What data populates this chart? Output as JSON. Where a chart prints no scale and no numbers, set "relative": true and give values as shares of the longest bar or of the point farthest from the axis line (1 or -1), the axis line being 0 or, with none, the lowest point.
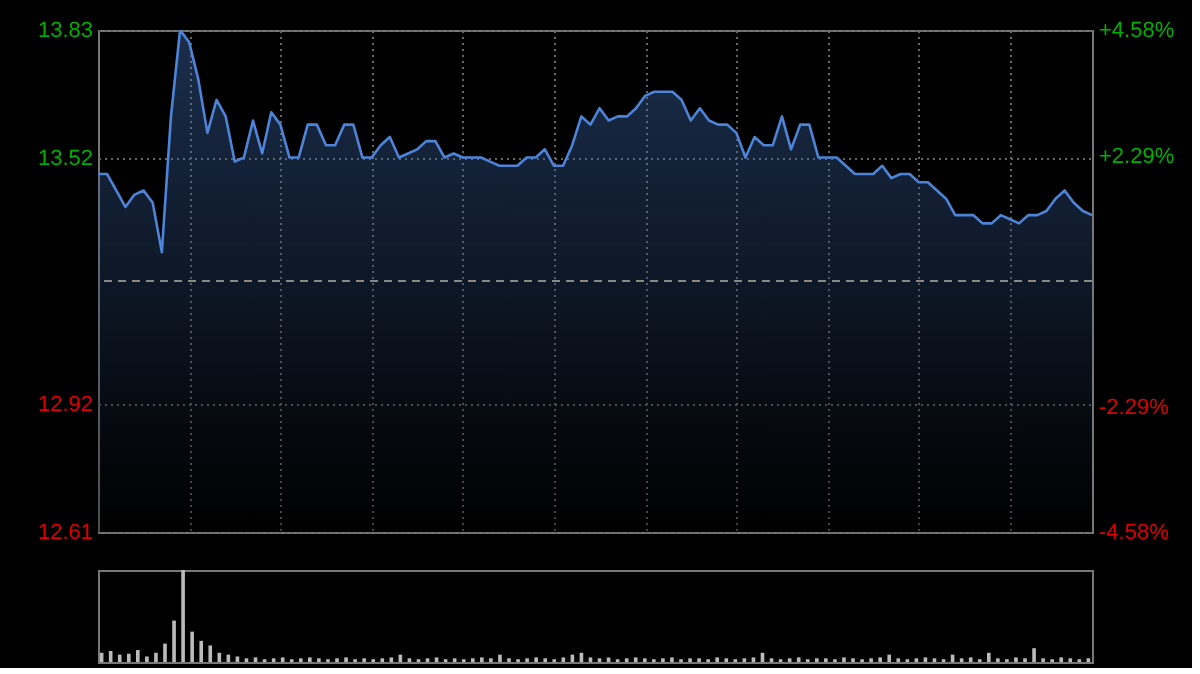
{
  "chart_data": [
    {
      "type": "area",
      "categories": [
        null,
        null,
        null,
        null,
        null,
        null,
        null,
        null,
        null,
        null,
        null,
        null,
        null,
        null,
        null,
        null,
        null,
        null,
        null,
        null,
        null,
        null,
        null,
        null,
        null,
        null,
        null,
        null,
        null,
        null,
        null,
        null,
        null,
        null,
        null,
        null,
        null,
        null,
        null,
        null,
        null,
        null,
        null,
        null,
        null,
        null,
        null,
        null,
        null,
        null,
        null,
        null,
        null,
        null,
        null,
        null,
        null,
        null,
        null,
        null,
        null,
        null,
        null,
        null,
        null,
        null,
        null,
        null,
        null,
        null,
        null,
        null,
        null,
        null,
        null,
        null,
        null,
        null,
        null,
        null,
        null,
        null,
        null,
        null,
        null,
        null,
        null,
        null,
        null,
        null,
        null,
        null,
        null,
        null,
        null,
        null,
        null,
        null,
        null,
        null,
        null,
        null,
        null,
        null,
        null,
        null,
        null,
        null,
        null,
        null
      ],
      "ylim": [
        12.61,
        13.83
      ],
      "yticks": [
        13.83,
        13.52,
        12.92,
        12.61
      ],
      "y2lim": [
        -4.58,
        4.58
      ],
      "y2ticks": [
        {
          "value": 4.58,
          "label": "+4.58%"
        },
        {
          "value": 2.29,
          "label": "+2.29%"
        },
        {
          "value": -2.29,
          "label": "-2.29%"
        },
        {
          "value": -4.58,
          "label": "-4.58%"
        }
      ],
      "grid": true,
      "tick_labels": "y",
      "ref_lines": [
        {
          "axis": "y2",
          "value": 0,
          "line_style": "dashed",
          "color": "#888888"
        }
      ],
      "series": [
        {
          "color": "#4d84d8",
          "values": [
            13.48,
            13.48,
            13.44,
            13.4,
            13.43,
            13.44,
            13.41,
            13.29,
            13.62,
            13.83,
            13.8,
            13.71,
            13.58,
            13.66,
            13.62,
            13.51,
            13.52,
            13.61,
            13.53,
            13.63,
            13.6,
            13.52,
            13.52,
            13.6,
            13.6,
            13.55,
            13.55,
            13.6,
            13.6,
            13.52,
            13.52,
            13.55,
            13.57,
            13.52,
            13.53,
            13.54,
            13.56,
            13.56,
            13.52,
            13.53,
            13.52,
            13.52,
            13.52,
            13.51,
            13.5,
            13.5,
            13.5,
            13.52,
            13.52,
            13.54,
            13.5,
            13.5,
            13.55,
            13.62,
            13.6,
            13.64,
            13.61,
            13.62,
            13.62,
            13.64,
            13.67,
            13.68,
            13.68,
            13.68,
            13.66,
            13.61,
            13.64,
            13.61,
            13.6,
            13.6,
            13.58,
            13.52,
            13.57,
            13.55,
            13.55,
            13.62,
            13.54,
            13.6,
            13.6,
            13.52,
            13.52,
            13.52,
            13.5,
            13.48,
            13.48,
            13.48,
            13.5,
            13.47,
            13.48,
            13.48,
            13.46,
            13.46,
            13.44,
            13.42,
            13.38,
            13.38,
            13.38,
            13.36,
            13.36,
            13.38,
            13.37,
            13.36,
            13.38,
            13.38,
            13.39,
            13.42,
            13.44,
            13.41,
            13.39,
            13.38
          ]
        }
      ]
    },
    {
      "type": "bar",
      "relative": true,
      "tick_labels": false,
      "categories": [
        null,
        null,
        null,
        null,
        null,
        null,
        null,
        null,
        null,
        null,
        null,
        null,
        null,
        null,
        null,
        null,
        null,
        null,
        null,
        null,
        null,
        null,
        null,
        null,
        null,
        null,
        null,
        null,
        null,
        null,
        null,
        null,
        null,
        null,
        null,
        null,
        null,
        null,
        null,
        null,
        null,
        null,
        null,
        null,
        null,
        null,
        null,
        null,
        null,
        null,
        null,
        null,
        null,
        null,
        null,
        null,
        null,
        null,
        null,
        null,
        null,
        null,
        null,
        null,
        null,
        null,
        null,
        null,
        null,
        null,
        null,
        null,
        null,
        null,
        null,
        null,
        null,
        null,
        null,
        null,
        null,
        null,
        null,
        null,
        null,
        null,
        null,
        null,
        null,
        null,
        null,
        null,
        null,
        null,
        null,
        null,
        null,
        null,
        null,
        null,
        null,
        null,
        null,
        null,
        null,
        null,
        null,
        null,
        null,
        null
      ],
      "series": [
        {
          "color": "#bbbbbb",
          "values": [
            0.1,
            0.12,
            0.08,
            0.09,
            0.13,
            0.06,
            0.1,
            0.2,
            0.45,
            1,
            0.33,
            0.23,
            0.18,
            0.1,
            0.08,
            0.06,
            0.04,
            0.05,
            0.03,
            0.04,
            0.05,
            0.03,
            0.04,
            0.05,
            0.04,
            0.03,
            0.04,
            0.05,
            0.03,
            0.04,
            0.03,
            0.04,
            0.05,
            0.08,
            0.04,
            0.03,
            0.04,
            0.05,
            0.03,
            0.04,
            0.03,
            0.04,
            0.05,
            0.04,
            0.08,
            0.04,
            0.03,
            0.04,
            0.05,
            0.04,
            0.03,
            0.05,
            0.08,
            0.1,
            0.05,
            0.04,
            0.05,
            0.03,
            0.04,
            0.05,
            0.04,
            0.03,
            0.04,
            0.05,
            0.03,
            0.04,
            0.04,
            0.03,
            0.05,
            0.04,
            0.03,
            0.04,
            0.05,
            0.1,
            0.04,
            0.03,
            0.04,
            0.05,
            0.03,
            0.04,
            0.04,
            0.03,
            0.05,
            0.04,
            0.03,
            0.04,
            0.05,
            0.08,
            0.04,
            0.03,
            0.04,
            0.05,
            0.04,
            0.03,
            0.08,
            0.04,
            0.05,
            0.03,
            0.1,
            0.04,
            0.03,
            0.05,
            0.04,
            0.15,
            0.04,
            0.03,
            0.05,
            0.04,
            0.03,
            0.04
          ]
        }
      ]
    }
  ]
}
